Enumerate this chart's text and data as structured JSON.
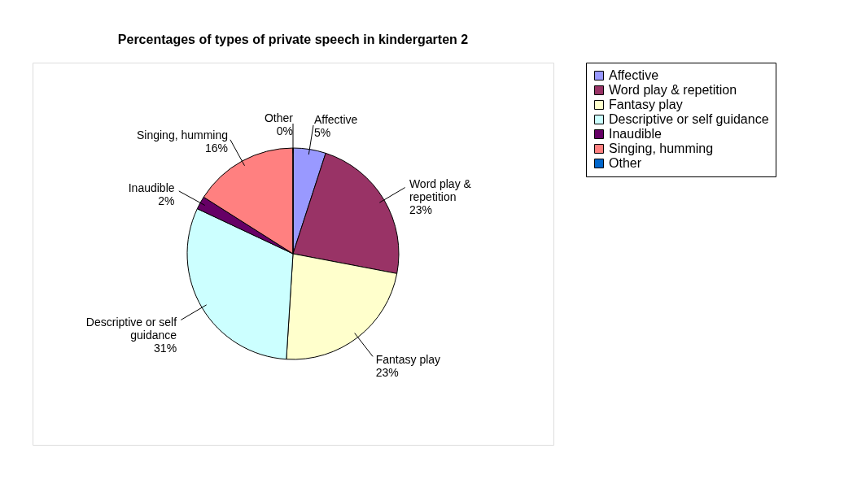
{
  "chart_data": {
    "type": "pie",
    "title": "Percentages of types of private speech in kindergarten 2",
    "categories": [
      "Affective",
      "Word play & repetition",
      "Fantasy play",
      "Descriptive or self guidance",
      "Inaudible",
      "Singing, humming",
      "Other"
    ],
    "values": [
      5,
      23,
      23,
      31,
      2,
      16,
      0
    ],
    "colors": [
      "#9999ff",
      "#993366",
      "#ffffcc",
      "#ccffff",
      "#660066",
      "#ff8080",
      "#0066cc"
    ],
    "value_labels": [
      "5%",
      "23%",
      "23%",
      "31%",
      "2%",
      "16%",
      "0%"
    ],
    "legend": "right"
  }
}
